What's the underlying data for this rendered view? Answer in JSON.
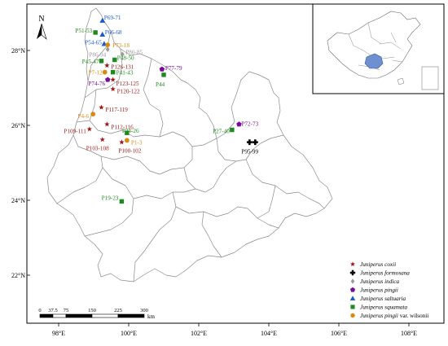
{
  "map": {
    "lat_ticks": [
      "28°N",
      "26°N",
      "24°N",
      "22°N"
    ],
    "lon_ticks": [
      "98°E",
      "100°E",
      "102°E",
      "104°E",
      "106°E",
      "108°E"
    ],
    "north_label": "N",
    "scale": {
      "ticks": [
        "0",
        "37.5",
        "75",
        "150",
        "225",
        "300"
      ],
      "unit": "km"
    },
    "colors": {
      "coxii": "#a01818",
      "formosana": "#000000",
      "indica": "#9a9a9a",
      "pingii": "#7a0a9a",
      "saltuaria": "#1a5ad6",
      "squamata": "#1f8a1f",
      "wilsonii": "#d98a12",
      "border": "#7a7a7a"
    }
  },
  "legend": [
    {
      "key": "coxii",
      "symbol": "star",
      "name": "Juniperus coxii",
      "suffix": ""
    },
    {
      "key": "formosana",
      "symbol": "cross",
      "name": "Juniperus formosana",
      "suffix": ""
    },
    {
      "key": "indica",
      "symbol": "diamond",
      "name": "Juniperus indica",
      "suffix": ""
    },
    {
      "key": "pingii",
      "symbol": "pentagon",
      "name": "Juniperus pingii",
      "suffix": ""
    },
    {
      "key": "saltuaria",
      "symbol": "triangle",
      "name": "Juniperus saltuaria",
      "suffix": ""
    },
    {
      "key": "squamata",
      "symbol": "square",
      "name": "Juniperus squamata",
      "suffix": ""
    },
    {
      "key": "wilsonii",
      "symbol": "circle",
      "name": "Juniperus pingii",
      "suffix": " var. wilsonii"
    }
  ],
  "sites": [
    {
      "label": "P69-71",
      "key": "saltuaria",
      "lon": 99.25,
      "lat": 28.8
    },
    {
      "label": "P51-53",
      "key": "squamata",
      "lon": 99.05,
      "lat": 28.48
    },
    {
      "label": "P66-68",
      "key": "saltuaria",
      "lon": 99.25,
      "lat": 28.43
    },
    {
      "label": "P54-65",
      "key": "saltuaria",
      "lon": 99.3,
      "lat": 28.18
    },
    {
      "label": "P73-18",
      "key": "wilsonii",
      "lon": 99.4,
      "lat": 28.15
    },
    {
      "label": "P86-94",
      "key": "indica",
      "lon": 99.4,
      "lat": 28.03
    },
    {
      "label": "P80-85",
      "key": "indica",
      "lon": 99.82,
      "lat": 27.9
    },
    {
      "label": "P45-47",
      "key": "squamata",
      "lon": 99.22,
      "lat": 27.72
    },
    {
      "label": "P48-50",
      "key": "squamata",
      "lon": 99.6,
      "lat": 27.75
    },
    {
      "label": "P126-131",
      "key": "coxii",
      "lon": 99.38,
      "lat": 27.6
    },
    {
      "label": "P77-79",
      "key": "pingii",
      "lon": 100.95,
      "lat": 27.5
    },
    {
      "label": "P7-12",
      "key": "wilsonii",
      "lon": 99.32,
      "lat": 27.42
    },
    {
      "label": "P41-43",
      "key": "squamata",
      "lon": 99.55,
      "lat": 27.42
    },
    {
      "label": "P44",
      "key": "squamata",
      "lon": 101.0,
      "lat": 27.35
    },
    {
      "label": "P74-76",
      "key": "pingii",
      "lon": 99.4,
      "lat": 27.22
    },
    {
      "label": "P123-125",
      "key": "coxii",
      "lon": 99.55,
      "lat": 27.22
    },
    {
      "label": "P120-122",
      "key": "coxii",
      "lon": 99.55,
      "lat": 26.97
    },
    {
      "label": "P117-119",
      "key": "coxii",
      "lon": 99.22,
      "lat": 26.48
    },
    {
      "label": "P4-6",
      "key": "wilsonii",
      "lon": 98.98,
      "lat": 26.3
    },
    {
      "label": "P112-116",
      "key": "coxii",
      "lon": 99.38,
      "lat": 26.03
    },
    {
      "label": "P109-111",
      "key": "coxii",
      "lon": 98.88,
      "lat": 25.9
    },
    {
      "label": "P24-26",
      "key": "squamata",
      "lon": 99.95,
      "lat": 25.8
    },
    {
      "label": "P1-3",
      "key": "wilsonii",
      "lon": 99.95,
      "lat": 25.6
    },
    {
      "label": "P103-108",
      "key": "coxii",
      "lon": 99.25,
      "lat": 25.62
    },
    {
      "label": "P100-102",
      "key": "coxii",
      "lon": 99.8,
      "lat": 25.55
    },
    {
      "label": "P72-73",
      "key": "pingii",
      "lon": 103.15,
      "lat": 26.03
    },
    {
      "label": "P27-40",
      "key": "squamata",
      "lon": 102.95,
      "lat": 25.88
    },
    {
      "label": "P95-99",
      "key": "formosana",
      "lon": 103.45,
      "lat": 25.55
    },
    {
      "label": "P19-23",
      "key": "squamata",
      "lon": 99.8,
      "lat": 23.97
    }
  ]
}
